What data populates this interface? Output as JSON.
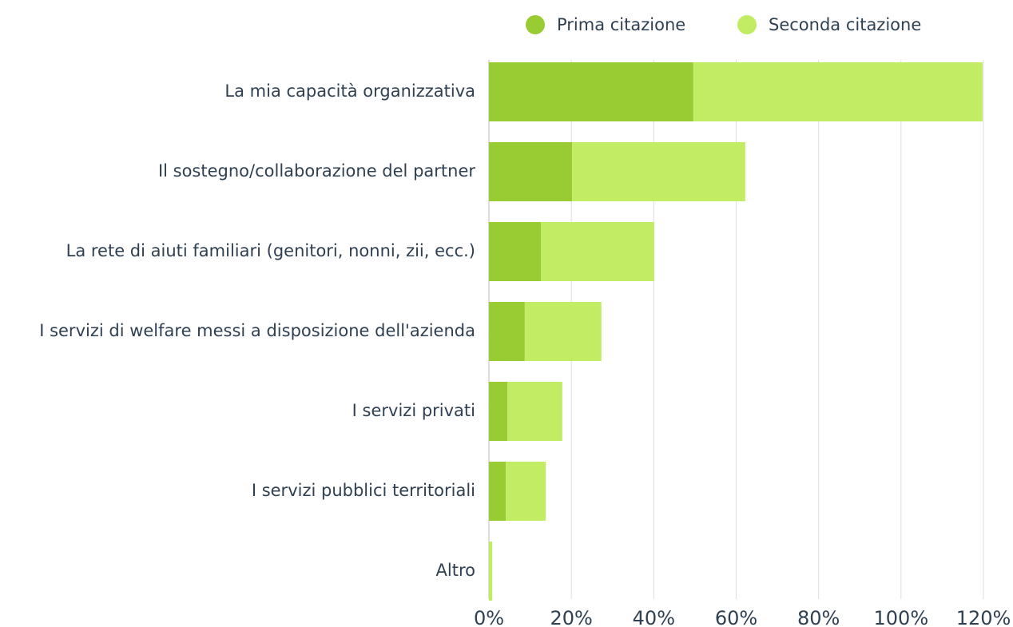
{
  "chart_data": {
    "type": "stacked-bar-horizontal",
    "categories": [
      "La mia capacità organizzativa",
      "Il sostegno/collaborazione del partner",
      "La rete di aiuti familiari (genitori, nonni, zii, ecc.)",
      "I servizi di welfare messi a disposizione dell'azienda",
      "I servizi privati",
      "I servizi pubblici territoriali",
      "Altro"
    ],
    "series": [
      {
        "name": "Prima citazione",
        "color": "#99cc33",
        "values": [
          49.6,
          20.2,
          12.6,
          8.7,
          4.5,
          4.1,
          0
        ]
      },
      {
        "name": "Seconda citazione",
        "color": "#c1ec63",
        "values": [
          70.2,
          42.0,
          27.5,
          18.6,
          13.3,
          9.7,
          0.8
        ]
      }
    ],
    "xlim": [
      0,
      120
    ],
    "xticks": [
      {
        "value": 0,
        "label": "0%"
      },
      {
        "value": 20,
        "label": "20%"
      },
      {
        "value": 40,
        "label": "40%"
      },
      {
        "value": 60,
        "label": "60%"
      },
      {
        "value": 80,
        "label": "80%"
      },
      {
        "value": 100,
        "label": "100%"
      },
      {
        "value": 120,
        "label": "120%"
      }
    ],
    "grid": true
  }
}
